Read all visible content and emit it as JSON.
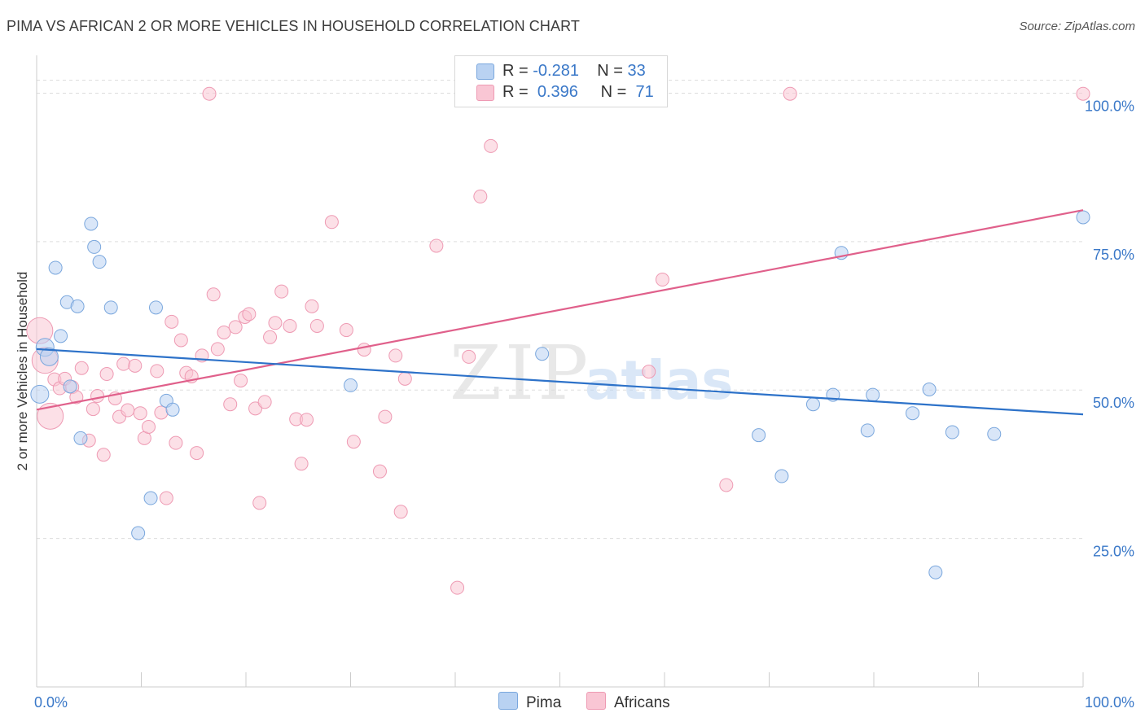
{
  "header": {
    "title": "PIMA VS AFRICAN 2 OR MORE VEHICLES IN HOUSEHOLD CORRELATION CHART",
    "source": "Source: ZipAtlas.com"
  },
  "legend": {
    "rows": [
      {
        "r_label": "R =",
        "r_value": "-0.281",
        "n_label": "N =",
        "n_value": "33"
      },
      {
        "r_label": "R =",
        "r_value": "0.396",
        "n_label": "N =",
        "n_value": "71"
      }
    ],
    "bottom": [
      "Pima",
      "Africans"
    ]
  },
  "watermark": {
    "zip": "ZIP",
    "atlas": "atlas"
  },
  "colors": {
    "pima_fill": "#b9d2f2",
    "pima_stroke": "#7aa7dd",
    "pima_line": "#2d72c9",
    "africans_fill": "#f9c6d4",
    "africans_stroke": "#ee9ab3",
    "africans_line": "#e0608b",
    "axis_label": "#3a78c8",
    "grid": "#dddddd"
  },
  "chart_data": {
    "type": "scatter",
    "title": "PIMA VS AFRICAN 2 OR MORE VEHICLES IN HOUSEHOLD CORRELATION CHART",
    "xlabel": "",
    "ylabel": "2 or more Vehicles in Household",
    "xlim": [
      0,
      100
    ],
    "ylim": [
      0,
      105
    ],
    "x_tick_labels": [
      "0.0%",
      "100.0%"
    ],
    "y_tick_labels": [
      "25.0%",
      "50.0%",
      "75.0%",
      "100.0%"
    ],
    "y_ticks": [
      25,
      50,
      75,
      100
    ],
    "grid": true,
    "legend_position": "top-center",
    "series": [
      {
        "name": "Pima",
        "r": -0.281,
        "n": 33,
        "trend": {
          "x": [
            0,
            100
          ],
          "y": [
            56.9,
            45.9
          ]
        },
        "points": [
          {
            "x": 0.3,
            "y": 49.3
          },
          {
            "x": 0.8,
            "y": 57.2
          },
          {
            "x": 1.2,
            "y": 55.6
          },
          {
            "x": 1.8,
            "y": 70.6
          },
          {
            "x": 2.3,
            "y": 59.1
          },
          {
            "x": 2.9,
            "y": 64.8
          },
          {
            "x": 3.2,
            "y": 50.6
          },
          {
            "x": 3.9,
            "y": 64.1
          },
          {
            "x": 4.2,
            "y": 41.9
          },
          {
            "x": 5.2,
            "y": 78.0
          },
          {
            "x": 5.5,
            "y": 74.1
          },
          {
            "x": 6.0,
            "y": 71.6
          },
          {
            "x": 7.1,
            "y": 63.9
          },
          {
            "x": 9.7,
            "y": 25.9
          },
          {
            "x": 10.9,
            "y": 31.8
          },
          {
            "x": 11.4,
            "y": 63.9
          },
          {
            "x": 12.4,
            "y": 48.2
          },
          {
            "x": 13.0,
            "y": 46.7
          },
          {
            "x": 30.0,
            "y": 50.8
          },
          {
            "x": 48.3,
            "y": 56.1
          },
          {
            "x": 69.0,
            "y": 42.4
          },
          {
            "x": 71.2,
            "y": 35.5
          },
          {
            "x": 74.2,
            "y": 47.6
          },
          {
            "x": 76.1,
            "y": 49.2
          },
          {
            "x": 76.9,
            "y": 73.1
          },
          {
            "x": 79.4,
            "y": 43.2
          },
          {
            "x": 79.9,
            "y": 49.2
          },
          {
            "x": 83.7,
            "y": 46.1
          },
          {
            "x": 85.3,
            "y": 50.1
          },
          {
            "x": 85.9,
            "y": 19.3
          },
          {
            "x": 87.5,
            "y": 42.9
          },
          {
            "x": 91.5,
            "y": 42.6
          },
          {
            "x": 100.0,
            "y": 79.1
          }
        ]
      },
      {
        "name": "Africans",
        "r": 0.396,
        "n": 71,
        "trend": {
          "x": [
            0,
            100
          ],
          "y": [
            46.7,
            80.3
          ]
        },
        "points": [
          {
            "x": 0.3,
            "y": 60.0
          },
          {
            "x": 0.8,
            "y": 55.0
          },
          {
            "x": 1.3,
            "y": 45.6
          },
          {
            "x": 1.7,
            "y": 51.8
          },
          {
            "x": 2.2,
            "y": 50.3
          },
          {
            "x": 2.7,
            "y": 51.9
          },
          {
            "x": 3.4,
            "y": 50.5
          },
          {
            "x": 3.8,
            "y": 48.8
          },
          {
            "x": 4.3,
            "y": 53.7
          },
          {
            "x": 5.0,
            "y": 41.5
          },
          {
            "x": 5.4,
            "y": 46.8
          },
          {
            "x": 5.8,
            "y": 49.0
          },
          {
            "x": 6.4,
            "y": 39.1
          },
          {
            "x": 6.7,
            "y": 52.7
          },
          {
            "x": 7.5,
            "y": 48.6
          },
          {
            "x": 7.9,
            "y": 45.5
          },
          {
            "x": 8.3,
            "y": 54.4
          },
          {
            "x": 8.7,
            "y": 46.6
          },
          {
            "x": 9.4,
            "y": 54.1
          },
          {
            "x": 9.9,
            "y": 46.1
          },
          {
            "x": 10.3,
            "y": 41.9
          },
          {
            "x": 10.7,
            "y": 43.8
          },
          {
            "x": 11.5,
            "y": 53.2
          },
          {
            "x": 11.9,
            "y": 46.2
          },
          {
            "x": 12.4,
            "y": 31.8
          },
          {
            "x": 12.9,
            "y": 61.5
          },
          {
            "x": 13.3,
            "y": 41.1
          },
          {
            "x": 13.8,
            "y": 58.4
          },
          {
            "x": 14.3,
            "y": 52.9
          },
          {
            "x": 14.8,
            "y": 52.3
          },
          {
            "x": 15.3,
            "y": 39.4
          },
          {
            "x": 15.8,
            "y": 55.8
          },
          {
            "x": 16.5,
            "y": 99.9
          },
          {
            "x": 16.9,
            "y": 66.1
          },
          {
            "x": 17.3,
            "y": 56.9
          },
          {
            "x": 17.9,
            "y": 59.7
          },
          {
            "x": 18.5,
            "y": 47.6
          },
          {
            "x": 19.0,
            "y": 60.6
          },
          {
            "x": 19.5,
            "y": 51.6
          },
          {
            "x": 19.9,
            "y": 62.3
          },
          {
            "x": 20.3,
            "y": 62.8
          },
          {
            "x": 20.9,
            "y": 46.9
          },
          {
            "x": 21.3,
            "y": 31.0
          },
          {
            "x": 21.8,
            "y": 48.0
          },
          {
            "x": 22.3,
            "y": 58.9
          },
          {
            "x": 22.8,
            "y": 61.3
          },
          {
            "x": 23.4,
            "y": 66.6
          },
          {
            "x": 24.2,
            "y": 60.8
          },
          {
            "x": 24.8,
            "y": 45.1
          },
          {
            "x": 25.3,
            "y": 37.6
          },
          {
            "x": 25.8,
            "y": 45.0
          },
          {
            "x": 26.3,
            "y": 64.1
          },
          {
            "x": 26.8,
            "y": 60.8
          },
          {
            "x": 28.2,
            "y": 78.3
          },
          {
            "x": 29.6,
            "y": 60.1
          },
          {
            "x": 30.3,
            "y": 41.3
          },
          {
            "x": 31.3,
            "y": 56.8
          },
          {
            "x": 32.8,
            "y": 36.3
          },
          {
            "x": 33.3,
            "y": 45.5
          },
          {
            "x": 34.3,
            "y": 55.8
          },
          {
            "x": 34.8,
            "y": 29.5
          },
          {
            "x": 35.2,
            "y": 51.9
          },
          {
            "x": 38.2,
            "y": 74.3
          },
          {
            "x": 40.2,
            "y": 16.7
          },
          {
            "x": 41.3,
            "y": 55.6
          },
          {
            "x": 42.4,
            "y": 82.6
          },
          {
            "x": 43.4,
            "y": 91.1
          },
          {
            "x": 58.5,
            "y": 53.1
          },
          {
            "x": 59.8,
            "y": 68.6
          },
          {
            "x": 65.9,
            "y": 34.0
          },
          {
            "x": 72.0,
            "y": 99.9
          },
          {
            "x": 100.0,
            "y": 99.9
          }
        ]
      }
    ]
  }
}
